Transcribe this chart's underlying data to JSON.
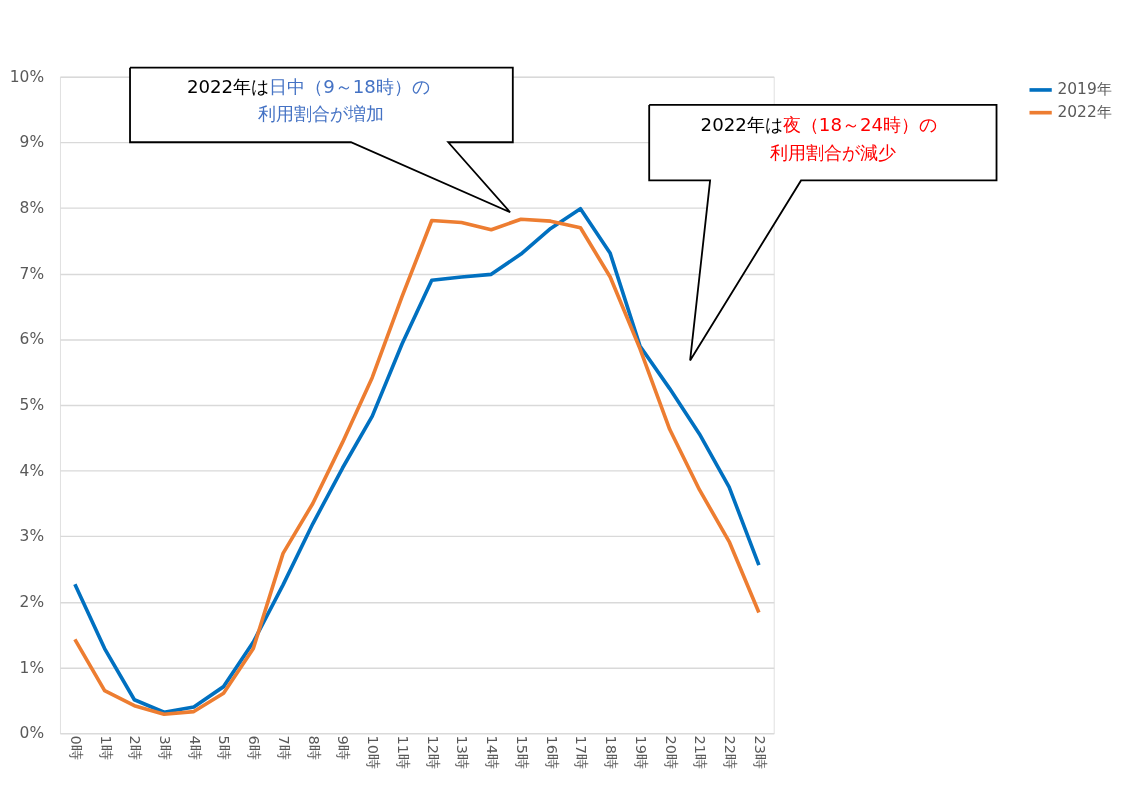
{
  "chart_data": {
    "type": "line",
    "categories": [
      "0時",
      "1時",
      "2時",
      "3時",
      "4時",
      "5時",
      "6時",
      "7時",
      "8時",
      "9時",
      "10時",
      "11時",
      "12時",
      "13時",
      "14時",
      "15時",
      "16時",
      "17時",
      "18時",
      "19時",
      "20時",
      "21時",
      "22時",
      "23時"
    ],
    "series": [
      {
        "name": "2019年",
        "color": "#0070c0",
        "values": [
          2.27,
          1.29,
          0.51,
          0.32,
          0.4,
          0.71,
          1.39,
          2.26,
          3.19,
          4.04,
          4.83,
          5.93,
          6.9,
          6.95,
          6.99,
          7.3,
          7.69,
          7.99,
          7.31,
          5.9,
          5.25,
          4.56,
          3.75,
          2.56
        ]
      },
      {
        "name": "2022年",
        "color": "#ed7d31",
        "values": [
          1.43,
          0.65,
          0.42,
          0.29,
          0.33,
          0.61,
          1.29,
          2.74,
          3.5,
          4.43,
          5.42,
          6.65,
          7.81,
          7.78,
          7.67,
          7.83,
          7.8,
          7.7,
          6.95,
          5.86,
          4.63,
          3.71,
          2.92,
          1.84
        ]
      }
    ],
    "ylim": [
      0,
      10
    ],
    "yticks": [
      {
        "value": 0,
        "label": "0%"
      },
      {
        "value": 1,
        "label": "1%"
      },
      {
        "value": 2,
        "label": "2%"
      },
      {
        "value": 3,
        "label": "3%"
      },
      {
        "value": 4,
        "label": "4%"
      },
      {
        "value": 5,
        "label": "5%"
      },
      {
        "value": 6,
        "label": "6%"
      },
      {
        "value": 7,
        "label": "7%"
      },
      {
        "value": 8,
        "label": "8%"
      },
      {
        "value": 9,
        "label": "9%"
      },
      {
        "value": 10,
        "label": "10%"
      }
    ],
    "grid": "y",
    "legend": "right",
    "marker": "none",
    "line_style": "solid",
    "annotations": [
      "2022年は",
      "日中（9～18時）の",
      "利用割合が増加",
      "2022年は",
      "夜（18～24時）の",
      "利用割合が減少"
    ]
  }
}
